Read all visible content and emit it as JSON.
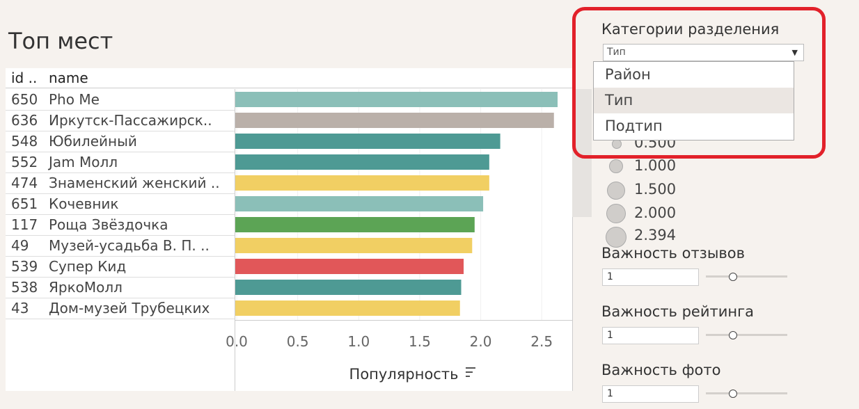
{
  "page": {
    "title": "Топ мест"
  },
  "table": {
    "headers": {
      "id": "id ..",
      "name": "name"
    },
    "rows": [
      {
        "id": "650",
        "name": "Pho Me"
      },
      {
        "id": "636",
        "name": "Иркутск-Пассажирск.."
      },
      {
        "id": "548",
        "name": "Юбилейный"
      },
      {
        "id": "552",
        "name": "Jam Молл"
      },
      {
        "id": "474",
        "name": "Знаменский женский .."
      },
      {
        "id": "651",
        "name": "Кочевник"
      },
      {
        "id": "117",
        "name": "Роща Звёздочка"
      },
      {
        "id": "49",
        "name": "Музей-усадьба В. П. .."
      },
      {
        "id": "539",
        "name": "Супер Кид"
      },
      {
        "id": "538",
        "name": "ЯркоМолл"
      },
      {
        "id": "43",
        "name": "Дом-музей Трубецких"
      }
    ]
  },
  "chart_data": {
    "type": "bar",
    "orientation": "horizontal",
    "categories": [
      "650 Pho Me",
      "636 Иркутск-Пассажирск..",
      "548 Юбилейный",
      "552 Jam Молл",
      "474 Знаменский женский ..",
      "651 Кочевник",
      "117 Роща Звёздочка",
      "49 Музей-усадьба В. П. ..",
      "539 Супер Кид",
      "538 ЯркоМолл",
      "43 Дом-музей Трубецких"
    ],
    "values": [
      2.63,
      2.6,
      2.16,
      2.07,
      2.07,
      2.02,
      1.95,
      1.93,
      1.86,
      1.84,
      1.83
    ],
    "colors": [
      "#8bbfb8",
      "#bab0a9",
      "#4e9a94",
      "#4e9a94",
      "#f1cf63",
      "#8bbfb8",
      "#5ca455",
      "#f1cf63",
      "#e15759",
      "#4e9a94",
      "#f1cf63"
    ],
    "xlabel": "Популярность",
    "xlim": [
      0,
      2.75
    ],
    "ticks": [
      0,
      0.5,
      1,
      1.5,
      2,
      2.5
    ],
    "tick_labels": [
      "0.0",
      "0.5",
      "1.0",
      "1.5",
      "2.0",
      "2.5"
    ]
  },
  "filter": {
    "title": "Категории разделения",
    "selected": "Тип",
    "options": [
      "Район",
      "Тип",
      "Подтип"
    ]
  },
  "size_legend": {
    "values": [
      "0.500",
      "1.000",
      "1.500",
      "2.000",
      "2.394"
    ]
  },
  "sliders": [
    {
      "label": "Важность отзывов",
      "value": "1",
      "level": 0.33
    },
    {
      "label": "Важность рейтинга",
      "value": "1",
      "level": 0.33
    },
    {
      "label": "Важность фото",
      "value": "1",
      "level": 0.33
    }
  ],
  "colors": {
    "accent_highlight": "#e2212a",
    "background": "#f6f2ee"
  }
}
